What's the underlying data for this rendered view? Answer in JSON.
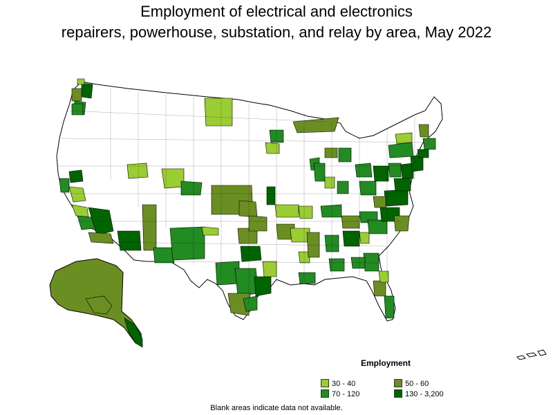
{
  "title": {
    "line1": "Employment of electrical and electronics",
    "line2": "repairers, powerhouse, substation, and relay by area, May 2022"
  },
  "legend": {
    "title": "Employment",
    "items": [
      {
        "label": "30 - 40",
        "color": "#9acd32"
      },
      {
        "label": "50 - 60",
        "color": "#6b8e23"
      },
      {
        "label": "70 - 120",
        "color": "#228b22"
      },
      {
        "label": "130 - 3,200",
        "color": "#006400"
      }
    ]
  },
  "note": "Blank areas indicate data not available.",
  "colors": {
    "blank": "#ffffff",
    "border": "#000000",
    "class_30_40": "#9acd32",
    "class_50_60": "#6b8e23",
    "class_70_120": "#228b22",
    "class_130_3200": "#006400"
  }
}
